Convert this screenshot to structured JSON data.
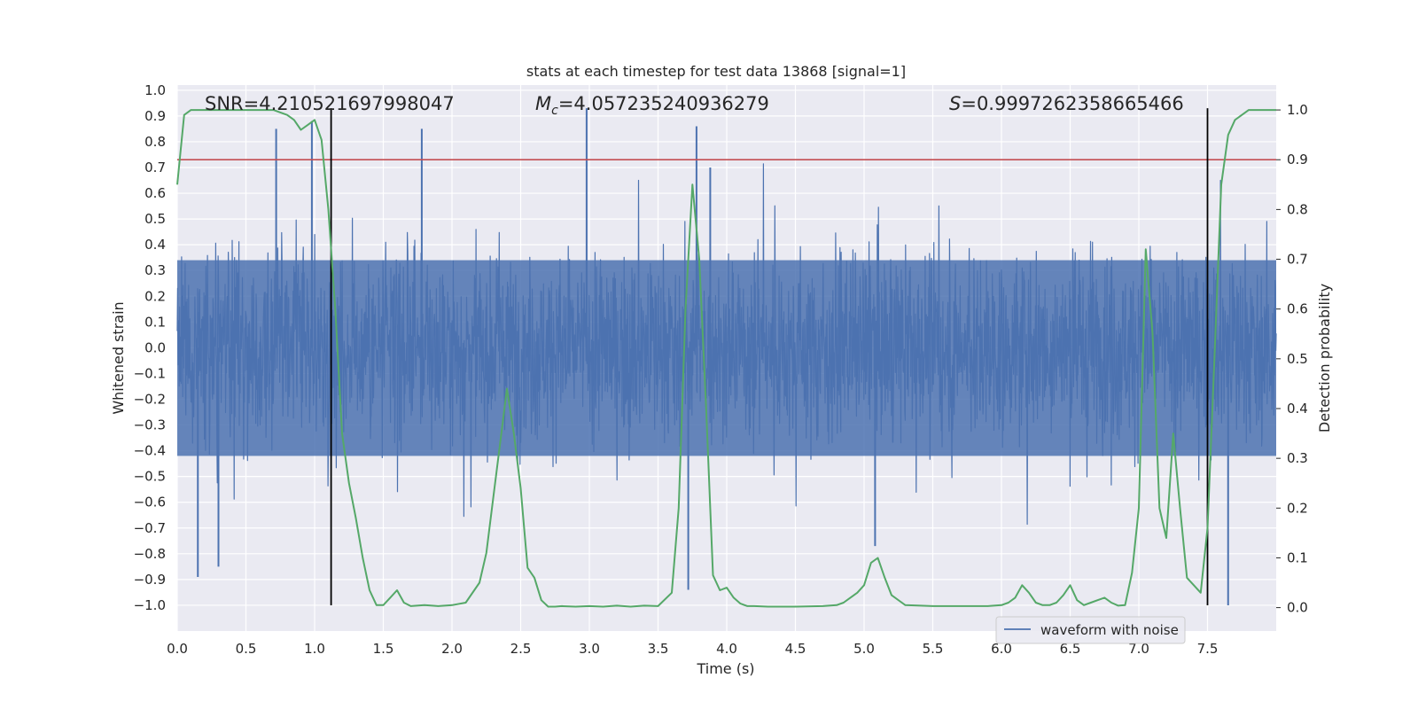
{
  "chart_data": {
    "type": "line",
    "title": "stats at each timestep for test data 13868 [signal=1]",
    "xlabel": "Time (s)",
    "ylabel": "Whitened strain",
    "y2label": "Detection probability",
    "xlim": [
      0,
      8
    ],
    "ylim": [
      -1.1,
      1.02
    ],
    "y2lim": [
      -0.047,
      1.05
    ],
    "x_ticks": [
      0.0,
      0.5,
      1.0,
      1.5,
      2.0,
      2.5,
      3.0,
      3.5,
      4.0,
      4.5,
      5.0,
      5.5,
      6.0,
      6.5,
      7.0,
      7.5
    ],
    "x_tick_labels": [
      "0.0",
      "0.5",
      "1.0",
      "1.5",
      "2.0",
      "2.5",
      "3.0",
      "3.5",
      "4.0",
      "4.5",
      "5.0",
      "5.5",
      "6.0",
      "6.5",
      "7.0",
      "7.5"
    ],
    "y_ticks": [
      1.0,
      0.9,
      0.8,
      0.7,
      0.6,
      0.5,
      0.4,
      0.3,
      0.2,
      0.1,
      0.0,
      -0.1,
      -0.2,
      -0.3,
      -0.4,
      -0.5,
      -0.6,
      -0.7,
      -0.8,
      -0.9,
      -1.0
    ],
    "y_tick_labels": [
      "1.0",
      "0.9",
      "0.8",
      "0.7",
      "0.6",
      "0.5",
      "0.4",
      "0.3",
      "0.2",
      "0.1",
      "0.0",
      "−0.1",
      "−0.2",
      "−0.3",
      "−0.4",
      "−0.5",
      "−0.6",
      "−0.7",
      "−0.8",
      "−0.9",
      "−1.0"
    ],
    "y2_ticks": [
      1.0,
      0.9,
      0.8,
      0.7,
      0.6,
      0.5,
      0.4,
      0.3,
      0.2,
      0.1,
      0.0
    ],
    "y2_tick_labels": [
      "1.0",
      "0.9",
      "0.8",
      "0.7",
      "0.6",
      "0.5",
      "0.4",
      "0.3",
      "0.2",
      "0.1",
      "0.0"
    ],
    "annotations": {
      "snr": "SNR=4.210521697998047",
      "mc_symbol": "M",
      "mc_sub": "c",
      "mc_value": "=4.057235240936279",
      "s_symbol": "S",
      "s_value": "=0.9997262358665466"
    },
    "legend": {
      "label": "waveform with noise",
      "position": "lower-right"
    },
    "threshold": {
      "name": "detection threshold",
      "y2": 0.9,
      "color": "#c44e52"
    },
    "vlines": {
      "x": [
        1.12,
        7.5
      ],
      "ymin": -1.0,
      "ymax": 0.93,
      "color": "#000000"
    },
    "series": [
      {
        "name": "waveform with noise",
        "axis": "left",
        "color": "#4c72b0",
        "description": "whitened noisy strain, dense fluctuation",
        "envelope_min": -1.0,
        "envelope_max": 0.93,
        "peaks": [
          {
            "x": 0.72,
            "y": 0.85
          },
          {
            "x": 0.98,
            "y": 0.88
          },
          {
            "x": 1.78,
            "y": 0.85
          },
          {
            "x": 2.98,
            "y": 0.93
          },
          {
            "x": 3.78,
            "y": 0.86
          },
          {
            "x": 3.88,
            "y": 0.7
          },
          {
            "x": 3.72,
            "y": -0.94
          },
          {
            "x": 5.08,
            "y": -0.77
          },
          {
            "x": 7.65,
            "y": -1.0
          },
          {
            "x": 0.15,
            "y": -0.89
          },
          {
            "x": 0.3,
            "y": -0.85
          }
        ]
      },
      {
        "name": "detection probability",
        "axis": "right",
        "color": "#55a868",
        "x": [
          0.0,
          0.05,
          0.1,
          0.15,
          0.2,
          0.3,
          0.4,
          0.5,
          0.6,
          0.7,
          0.8,
          0.85,
          0.9,
          0.95,
          1.0,
          1.05,
          1.1,
          1.15,
          1.2,
          1.25,
          1.3,
          1.35,
          1.4,
          1.45,
          1.5,
          1.55,
          1.6,
          1.65,
          1.7,
          1.8,
          1.9,
          2.0,
          2.1,
          2.2,
          2.25,
          2.3,
          2.35,
          2.4,
          2.45,
          2.5,
          2.55,
          2.6,
          2.65,
          2.7,
          2.75,
          2.8,
          2.9,
          3.0,
          3.1,
          3.2,
          3.3,
          3.4,
          3.5,
          3.6,
          3.65,
          3.7,
          3.75,
          3.8,
          3.85,
          3.9,
          3.95,
          4.0,
          4.05,
          4.1,
          4.15,
          4.2,
          4.3,
          4.5,
          4.7,
          4.8,
          4.85,
          4.9,
          4.95,
          5.0,
          5.05,
          5.1,
          5.15,
          5.2,
          5.3,
          5.5,
          5.7,
          5.9,
          6.0,
          6.05,
          6.1,
          6.15,
          6.2,
          6.25,
          6.3,
          6.35,
          6.4,
          6.45,
          6.5,
          6.55,
          6.6,
          6.65,
          6.7,
          6.75,
          6.8,
          6.85,
          6.9,
          6.95,
          7.0,
          7.05,
          7.1,
          7.15,
          7.2,
          7.25,
          7.3,
          7.35,
          7.4,
          7.45,
          7.5,
          7.55,
          7.6,
          7.65,
          7.7,
          7.8,
          7.9,
          8.0
        ],
        "y": [
          0.85,
          0.99,
          1.0,
          1.0,
          1.0,
          1.0,
          1.0,
          1.0,
          1.0,
          1.0,
          0.99,
          0.98,
          0.96,
          0.97,
          0.98,
          0.94,
          0.8,
          0.6,
          0.35,
          0.25,
          0.18,
          0.1,
          0.035,
          0.005,
          0.005,
          0.02,
          0.035,
          0.01,
          0.003,
          0.005,
          0.003,
          0.005,
          0.01,
          0.05,
          0.11,
          0.22,
          0.33,
          0.44,
          0.35,
          0.24,
          0.08,
          0.06,
          0.015,
          0.002,
          0.002,
          0.003,
          0.002,
          0.003,
          0.002,
          0.004,
          0.002,
          0.004,
          0.003,
          0.03,
          0.2,
          0.6,
          0.85,
          0.7,
          0.4,
          0.065,
          0.035,
          0.04,
          0.02,
          0.008,
          0.003,
          0.003,
          0.002,
          0.002,
          0.003,
          0.005,
          0.01,
          0.02,
          0.03,
          0.045,
          0.09,
          0.1,
          0.06,
          0.025,
          0.005,
          0.003,
          0.003,
          0.003,
          0.005,
          0.01,
          0.02,
          0.045,
          0.03,
          0.01,
          0.005,
          0.005,
          0.01,
          0.025,
          0.045,
          0.015,
          0.005,
          0.01,
          0.015,
          0.02,
          0.01,
          0.004,
          0.005,
          0.07,
          0.2,
          0.72,
          0.55,
          0.2,
          0.14,
          0.35,
          0.2,
          0.06,
          0.045,
          0.03,
          0.16,
          0.5,
          0.85,
          0.95,
          0.98,
          1.0,
          1.0,
          1.0
        ]
      }
    ]
  }
}
